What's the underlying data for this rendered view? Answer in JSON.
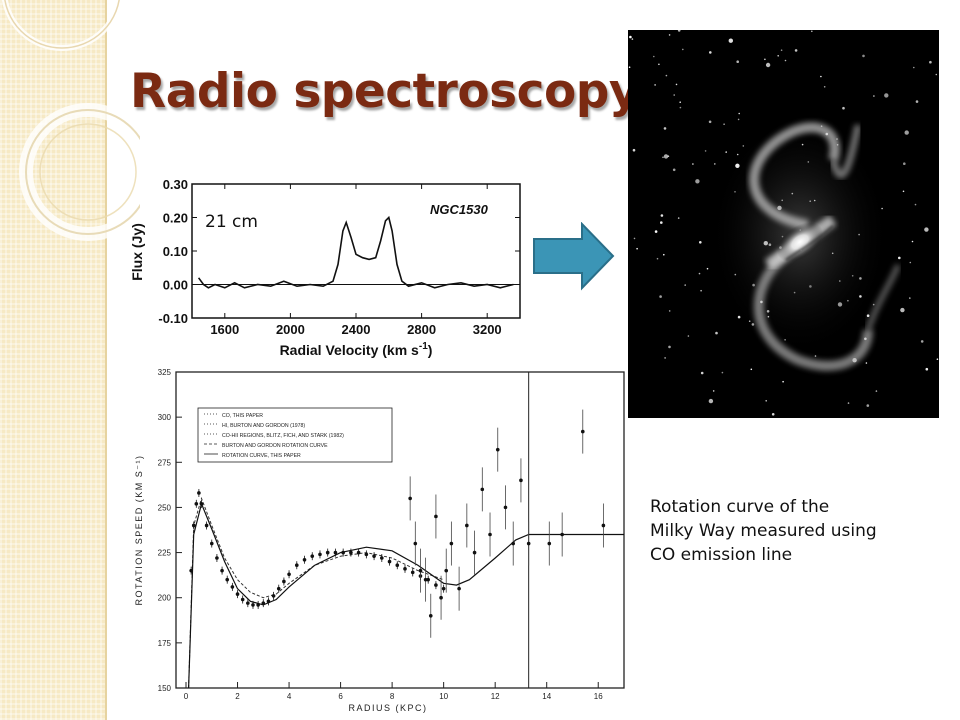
{
  "slide": {
    "title": "Radio spectroscopy",
    "spectrum_tag": "21 cm",
    "caption_lines": [
      "Rotation curve of the",
      "Milky Way measured using",
      "CO emission line"
    ],
    "icons": [
      "arrow-right-icon"
    ],
    "colors": {
      "title": "#7b2a12",
      "arrow_fill": "#3b95b6",
      "arrow_stroke": "#2a6f89",
      "sidebar": "#f6e9c4"
    }
  },
  "chart_data": [
    {
      "type": "line",
      "object_label": "NGC1530",
      "xlabel": "Radial Velocity  (km s-1)",
      "ylabel": "Flux  (Jy)",
      "xlim": [
        1400,
        3400
      ],
      "ylim": [
        -0.1,
        0.3
      ],
      "xticks": [
        "1600",
        "2000",
        "2400",
        "2800",
        "3200"
      ],
      "yticks": [
        "0.30",
        "0.20",
        "0.10",
        "0.00",
        "-0.10"
      ],
      "series": [
        {
          "x": [
            1440,
            1470,
            1500,
            1540,
            1600,
            1660,
            1720,
            1800,
            1880,
            1960,
            2040,
            2120,
            2200,
            2260,
            2290,
            2320,
            2340,
            2370,
            2400,
            2440,
            2480,
            2520,
            2550,
            2580,
            2600,
            2620,
            2650,
            2680,
            2720,
            2800,
            2880,
            2960,
            3040,
            3120,
            3200,
            3280,
            3360
          ],
          "y": [
            0.02,
            0.0,
            -0.01,
            0.0,
            -0.01,
            0.005,
            -0.01,
            0.0,
            -0.005,
            0.01,
            -0.005,
            0.0,
            -0.005,
            0.01,
            0.06,
            0.16,
            0.185,
            0.14,
            0.09,
            0.08,
            0.075,
            0.08,
            0.13,
            0.19,
            0.2,
            0.16,
            0.06,
            0.01,
            -0.005,
            0.005,
            -0.01,
            0.0,
            0.005,
            -0.005,
            0.0,
            -0.01,
            0.0
          ]
        }
      ]
    },
    {
      "type": "scatter",
      "xlabel": "RADIUS  (KPC)",
      "ylabel": "ROTATION  SPEED  (KM  S⁻¹)",
      "xlim": [
        0,
        17
      ],
      "ylim": [
        150,
        325
      ],
      "xticks": [
        "0",
        "2",
        "4",
        "6",
        "8",
        "10",
        "12",
        "14",
        "16"
      ],
      "yticks": [
        "325",
        "300",
        "275",
        "250",
        "225",
        "200",
        "175",
        "150"
      ],
      "legend": [
        "CO, THIS PAPER",
        "HI, BURTON AND GORDON (1978)",
        "CO-HII REGIONS, BLITZ, FICH, AND STARK (1982)",
        "BURTON AND GORDON ROTATION CURVE",
        "ROTATION CURVE, THIS PAPER"
      ],
      "legend_position": "top-left",
      "series": [
        {
          "name": "CO, THIS PAPER",
          "x": [
            0.2,
            0.3,
            0.4,
            0.5,
            0.6,
            0.8,
            1.0,
            1.2,
            1.4,
            1.6,
            1.8,
            2.0,
            2.2,
            2.4,
            2.6,
            2.8,
            3.0,
            3.2,
            3.4,
            3.6,
            3.8,
            4.0,
            4.3,
            4.6,
            4.9,
            5.2,
            5.5,
            5.8,
            6.1,
            6.4,
            6.7,
            7.0,
            7.3,
            7.6,
            7.9,
            8.2,
            8.5,
            8.8,
            9.1,
            9.4,
            9.7,
            10.0
          ],
          "y": [
            215,
            240,
            252,
            258,
            252,
            240,
            230,
            222,
            215,
            210,
            206,
            202,
            199,
            197,
            196,
            196,
            197,
            198,
            201,
            205,
            209,
            213,
            218,
            221,
            223,
            224,
            225,
            225,
            225,
            225,
            225,
            224,
            223,
            222,
            220,
            218,
            216,
            214,
            212,
            210,
            207,
            205
          ]
        },
        {
          "name": "CO-HII REGIONS, BLITZ, FICH, AND STARK (1982)",
          "x": [
            8.7,
            8.9,
            9.1,
            9.3,
            9.5,
            9.7,
            9.9,
            10.1,
            10.3,
            10.6,
            10.9,
            11.2,
            11.5,
            11.8,
            12.1,
            12.4,
            12.7,
            13.0,
            13.3,
            14.1,
            14.6,
            15.4,
            16.2
          ],
          "y": [
            255,
            230,
            215,
            210,
            190,
            245,
            200,
            215,
            230,
            205,
            240,
            225,
            260,
            235,
            282,
            250,
            230,
            265,
            230,
            230,
            235,
            292,
            240
          ]
        }
      ],
      "curves": [
        {
          "name": "BURTON AND GORDON ROTATION CURVE",
          "x": [
            0.1,
            0.3,
            0.6,
            1.0,
            1.5,
            2.0,
            2.5,
            3.0,
            3.5,
            4.0,
            5.0,
            6.0,
            7.0,
            8.0,
            9.0,
            10.0
          ],
          "y": [
            150,
            240,
            255,
            240,
            222,
            210,
            203,
            200,
            202,
            208,
            218,
            223,
            225,
            222,
            215,
            210
          ]
        },
        {
          "name": "ROTATION CURVE, THIS PAPER",
          "x": [
            0.1,
            0.3,
            0.6,
            1.0,
            1.5,
            2.0,
            2.5,
            3.0,
            3.5,
            4.0,
            5.0,
            6.0,
            7.0,
            8.0,
            9.0,
            10.0,
            10.5,
            11.0,
            12.0,
            12.8,
            13.3,
            17.0
          ],
          "y": [
            150,
            235,
            252,
            238,
            220,
            205,
            198,
            196,
            199,
            206,
            218,
            225,
            228,
            226,
            218,
            208,
            207,
            210,
            222,
            232,
            235,
            235
          ]
        }
      ]
    }
  ]
}
